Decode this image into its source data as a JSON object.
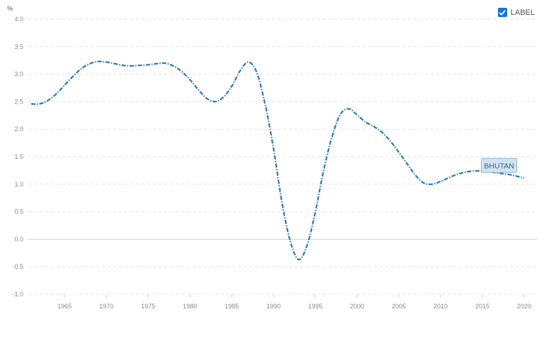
{
  "legend": {
    "label": "LABEL",
    "checked": true,
    "checkbox_color": "#1a73d9"
  },
  "chart_data": {
    "type": "line",
    "ylabel": "%",
    "xlabel": "",
    "ylim": [
      -1.0,
      4.0
    ],
    "xlim": [
      1961,
      2020
    ],
    "grid": true,
    "y_ticks": [
      "4.0",
      "3.5",
      "3.0",
      "2.5",
      "2.0",
      "1.5",
      "1.0",
      "0.5",
      "0.0",
      "-0.5",
      "-1.0"
    ],
    "y_tick_values": [
      4.0,
      3.5,
      3.0,
      2.5,
      2.0,
      1.5,
      1.0,
      0.5,
      0.0,
      -0.5,
      -1.0
    ],
    "x_ticks": [
      "1965",
      "1970",
      "1975",
      "1980",
      "1985",
      "1990",
      "1995",
      "2000",
      "2005",
      "2010",
      "2015",
      "2020"
    ],
    "x_tick_values": [
      1965,
      1970,
      1975,
      1980,
      1985,
      1990,
      1995,
      2000,
      2005,
      2010,
      2015,
      2020
    ],
    "series": [
      {
        "name": "BHUTAN",
        "color": "#2b7ab0",
        "x": [
          1961,
          1962,
          1963,
          1964,
          1965,
          1966,
          1967,
          1968,
          1969,
          1970,
          1971,
          1972,
          1973,
          1974,
          1975,
          1976,
          1977,
          1978,
          1979,
          1980,
          1981,
          1982,
          1983,
          1984,
          1985,
          1986,
          1987,
          1988,
          1989,
          1990,
          1991,
          1992,
          1993,
          1994,
          1995,
          1996,
          1997,
          1998,
          1999,
          2000,
          2001,
          2002,
          2003,
          2004,
          2005,
          2006,
          2007,
          2008,
          2009,
          2010,
          2011,
          2012,
          2013,
          2014,
          2015,
          2016,
          2017,
          2018,
          2019,
          2020
        ],
        "values": [
          2.46,
          2.46,
          2.52,
          2.64,
          2.8,
          2.96,
          3.1,
          3.19,
          3.23,
          3.22,
          3.19,
          3.16,
          3.15,
          3.16,
          3.17,
          3.19,
          3.2,
          3.15,
          3.05,
          2.9,
          2.72,
          2.56,
          2.5,
          2.58,
          2.78,
          3.06,
          3.22,
          3.03,
          2.45,
          1.65,
          0.68,
          -0.03,
          -0.37,
          -0.12,
          0.49,
          1.25,
          1.86,
          2.27,
          2.37,
          2.26,
          2.13,
          2.05,
          1.94,
          1.78,
          1.58,
          1.37,
          1.16,
          1.02,
          1.0,
          1.05,
          1.12,
          1.18,
          1.22,
          1.24,
          1.24,
          1.22,
          1.2,
          1.18,
          1.15,
          1.11
        ]
      }
    ]
  }
}
